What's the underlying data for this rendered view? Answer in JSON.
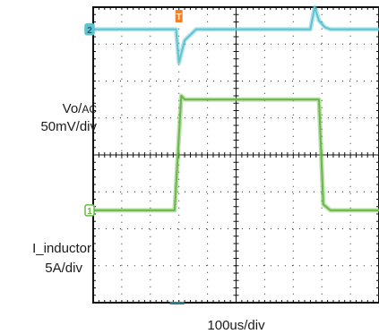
{
  "chart_data": {
    "type": "line",
    "title": "",
    "x_scale": "100us/div",
    "x_divisions": 10,
    "y_divisions": 8,
    "x_range_us": [
      0,
      1000
    ],
    "trigger_marker": "T",
    "trigger_position_us": 300,
    "series": [
      {
        "name_main": "Vo/",
        "name_sub": "AC",
        "scale": "50mV/div",
        "channel": "2",
        "color": "#5fc3d0",
        "offset_div": 3.4,
        "x_us": [
          0,
          290,
          300,
          320,
          360,
          520,
          760,
          775,
          790,
          810,
          830,
          1000
        ],
        "y_mV": [
          0,
          0,
          -45,
          -15,
          0,
          0,
          0,
          30,
          12,
          3,
          0,
          0
        ]
      },
      {
        "name": "I_inductor",
        "scale": "5A/div",
        "channel": "1",
        "color": "#6ab84a",
        "offset_div": -1.5,
        "x_us": [
          0,
          285,
          308,
          320,
          400,
          500,
          600,
          700,
          790,
          805,
          830,
          1000
        ],
        "y_A": [
          0,
          0,
          15.5,
          15.0,
          15.0,
          15.0,
          15.0,
          15.0,
          15.0,
          0.8,
          0,
          0
        ]
      }
    ]
  }
}
